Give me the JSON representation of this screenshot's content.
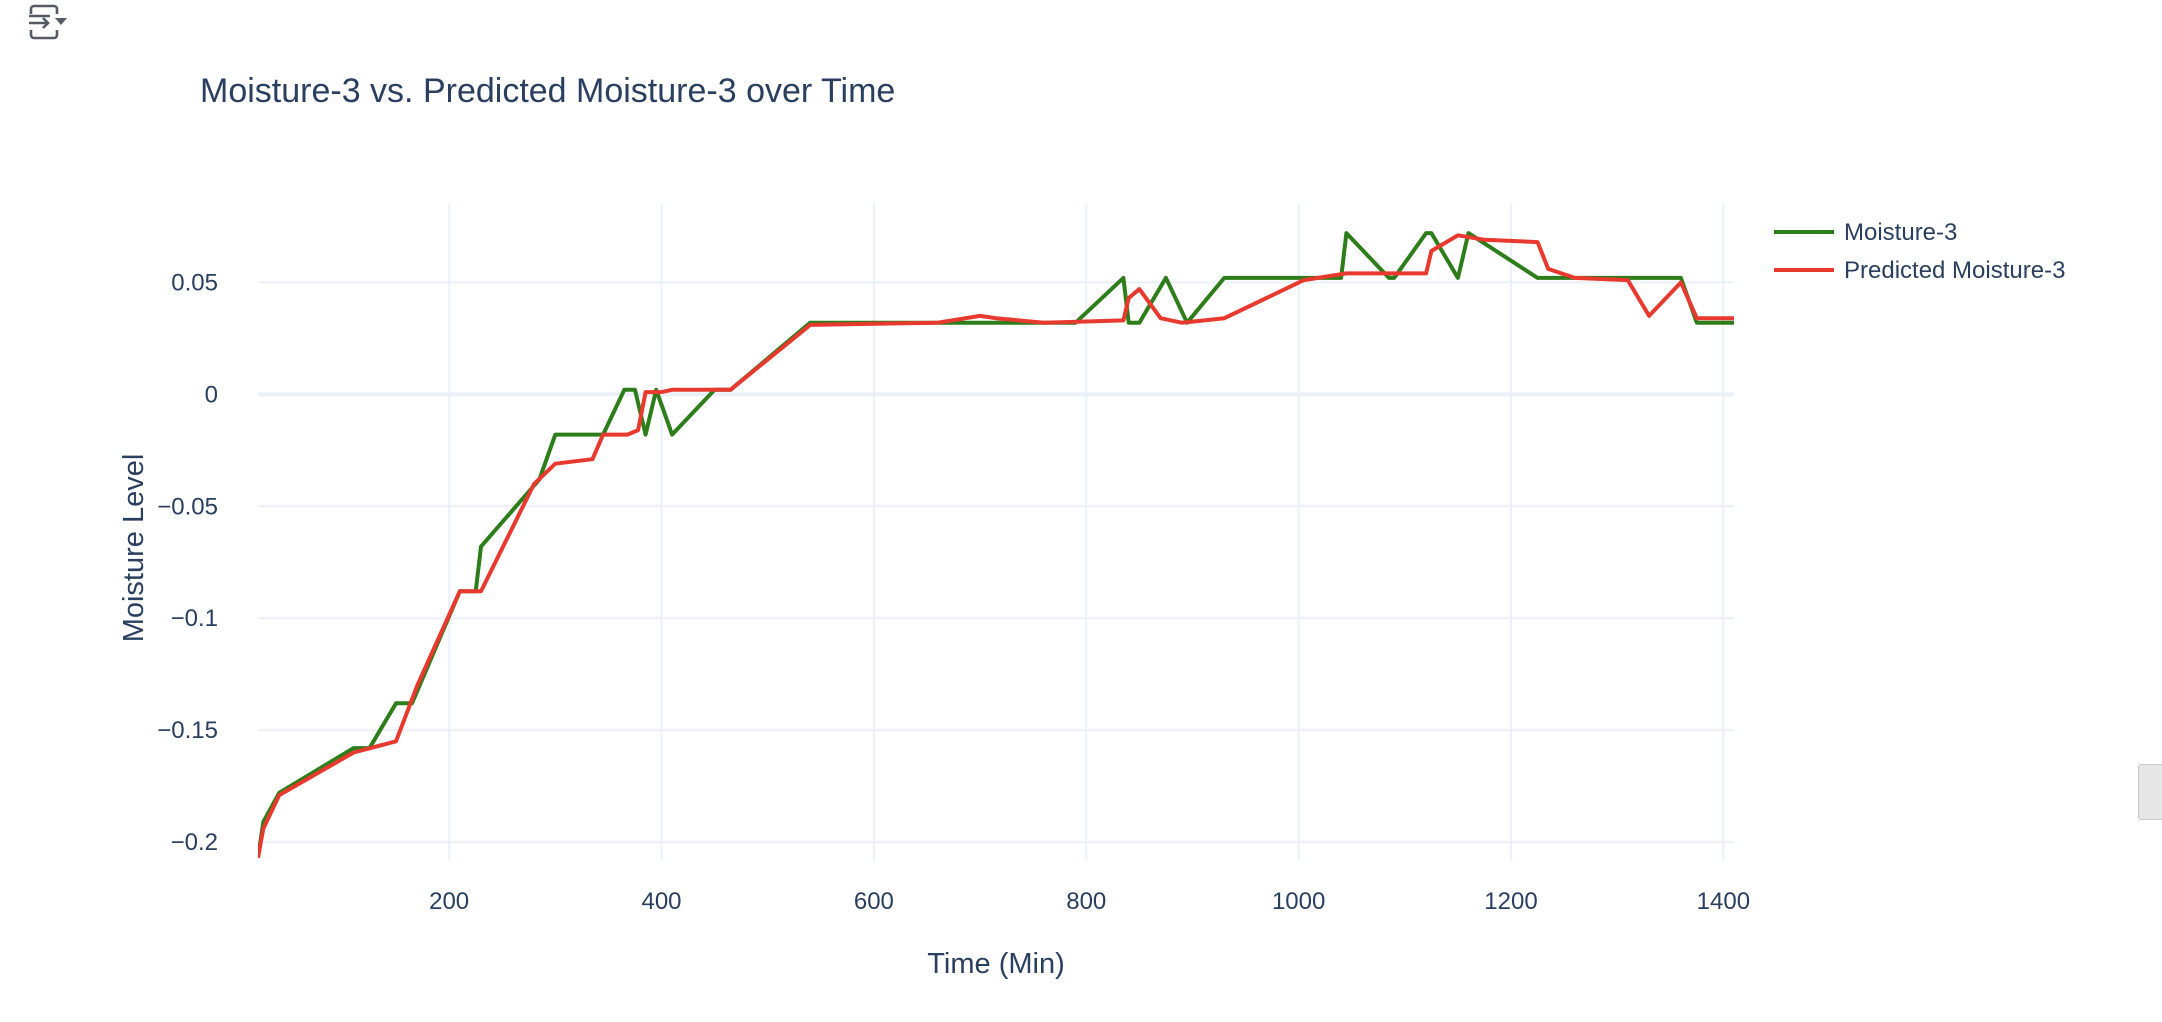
{
  "toolbar": {
    "toggle_icon": "toolbar-expand-icon"
  },
  "chart_data": {
    "type": "line",
    "title": "Moisture-3 vs. Predicted Moisture-3 over Time",
    "xlabel": "Time (Min)",
    "ylabel": "Moisture Level",
    "xlim": [
      20,
      1410
    ],
    "ylim": [
      -0.208,
      0.085
    ],
    "x_ticks": [
      200,
      400,
      600,
      800,
      1000,
      1200,
      1400
    ],
    "x_tick_labels": [
      "200",
      "400",
      "600",
      "800",
      "1000",
      "1200",
      "1400"
    ],
    "y_ticks": [
      0.05,
      0,
      -0.05,
      -0.1,
      -0.15,
      -0.2
    ],
    "y_tick_labels": [
      "0.05",
      "0",
      "−0.05",
      "−0.1",
      "−0.15",
      "−0.2"
    ],
    "grid": true,
    "legend_position": "top-right",
    "series": [
      {
        "name": "Moisture-3",
        "color": "#2d7d1a",
        "points": [
          [
            20,
            -0.207
          ],
          [
            25,
            -0.191
          ],
          [
            40,
            -0.178
          ],
          [
            110,
            -0.158
          ],
          [
            125,
            -0.158
          ],
          [
            150,
            -0.138
          ],
          [
            165,
            -0.138
          ],
          [
            210,
            -0.088
          ],
          [
            225,
            -0.088
          ],
          [
            230,
            -0.068
          ],
          [
            285,
            -0.038
          ],
          [
            300,
            -0.018
          ],
          [
            345,
            -0.018
          ],
          [
            365,
            0.002
          ],
          [
            375,
            0.002
          ],
          [
            385,
            -0.018
          ],
          [
            395,
            0.002
          ],
          [
            410,
            -0.018
          ],
          [
            450,
            0.002
          ],
          [
            465,
            0.002
          ],
          [
            540,
            0.032
          ],
          [
            790,
            0.032
          ],
          [
            835,
            0.052
          ],
          [
            840,
            0.032
          ],
          [
            850,
            0.032
          ],
          [
            875,
            0.052
          ],
          [
            895,
            0.032
          ],
          [
            930,
            0.052
          ],
          [
            1040,
            0.052
          ],
          [
            1045,
            0.072
          ],
          [
            1085,
            0.052
          ],
          [
            1090,
            0.052
          ],
          [
            1120,
            0.072
          ],
          [
            1125,
            0.072
          ],
          [
            1150,
            0.052
          ],
          [
            1160,
            0.072
          ],
          [
            1225,
            0.052
          ],
          [
            1360,
            0.052
          ],
          [
            1375,
            0.032
          ],
          [
            1410,
            0.032
          ]
        ]
      },
      {
        "name": "Predicted Moisture-3",
        "color": "#e8392f",
        "points": [
          [
            20,
            -0.207
          ],
          [
            25,
            -0.194
          ],
          [
            40,
            -0.179
          ],
          [
            110,
            -0.16
          ],
          [
            150,
            -0.155
          ],
          [
            170,
            -0.13
          ],
          [
            210,
            -0.088
          ],
          [
            230,
            -0.088
          ],
          [
            280,
            -0.04
          ],
          [
            300,
            -0.031
          ],
          [
            335,
            -0.029
          ],
          [
            345,
            -0.018
          ],
          [
            368,
            -0.018
          ],
          [
            378,
            -0.016
          ],
          [
            385,
            0.001
          ],
          [
            400,
            0.001
          ],
          [
            410,
            0.002
          ],
          [
            465,
            0.002
          ],
          [
            540,
            0.031
          ],
          [
            660,
            0.032
          ],
          [
            700,
            0.035
          ],
          [
            715,
            0.034
          ],
          [
            760,
            0.032
          ],
          [
            835,
            0.033
          ],
          [
            840,
            0.043
          ],
          [
            850,
            0.047
          ],
          [
            870,
            0.034
          ],
          [
            890,
            0.032
          ],
          [
            930,
            0.034
          ],
          [
            1005,
            0.051
          ],
          [
            1045,
            0.054
          ],
          [
            1120,
            0.054
          ],
          [
            1125,
            0.064
          ],
          [
            1150,
            0.071
          ],
          [
            1175,
            0.069
          ],
          [
            1225,
            0.068
          ],
          [
            1235,
            0.056
          ],
          [
            1260,
            0.052
          ],
          [
            1310,
            0.051
          ],
          [
            1330,
            0.035
          ],
          [
            1360,
            0.05
          ],
          [
            1375,
            0.034
          ],
          [
            1410,
            0.034
          ]
        ]
      }
    ]
  }
}
